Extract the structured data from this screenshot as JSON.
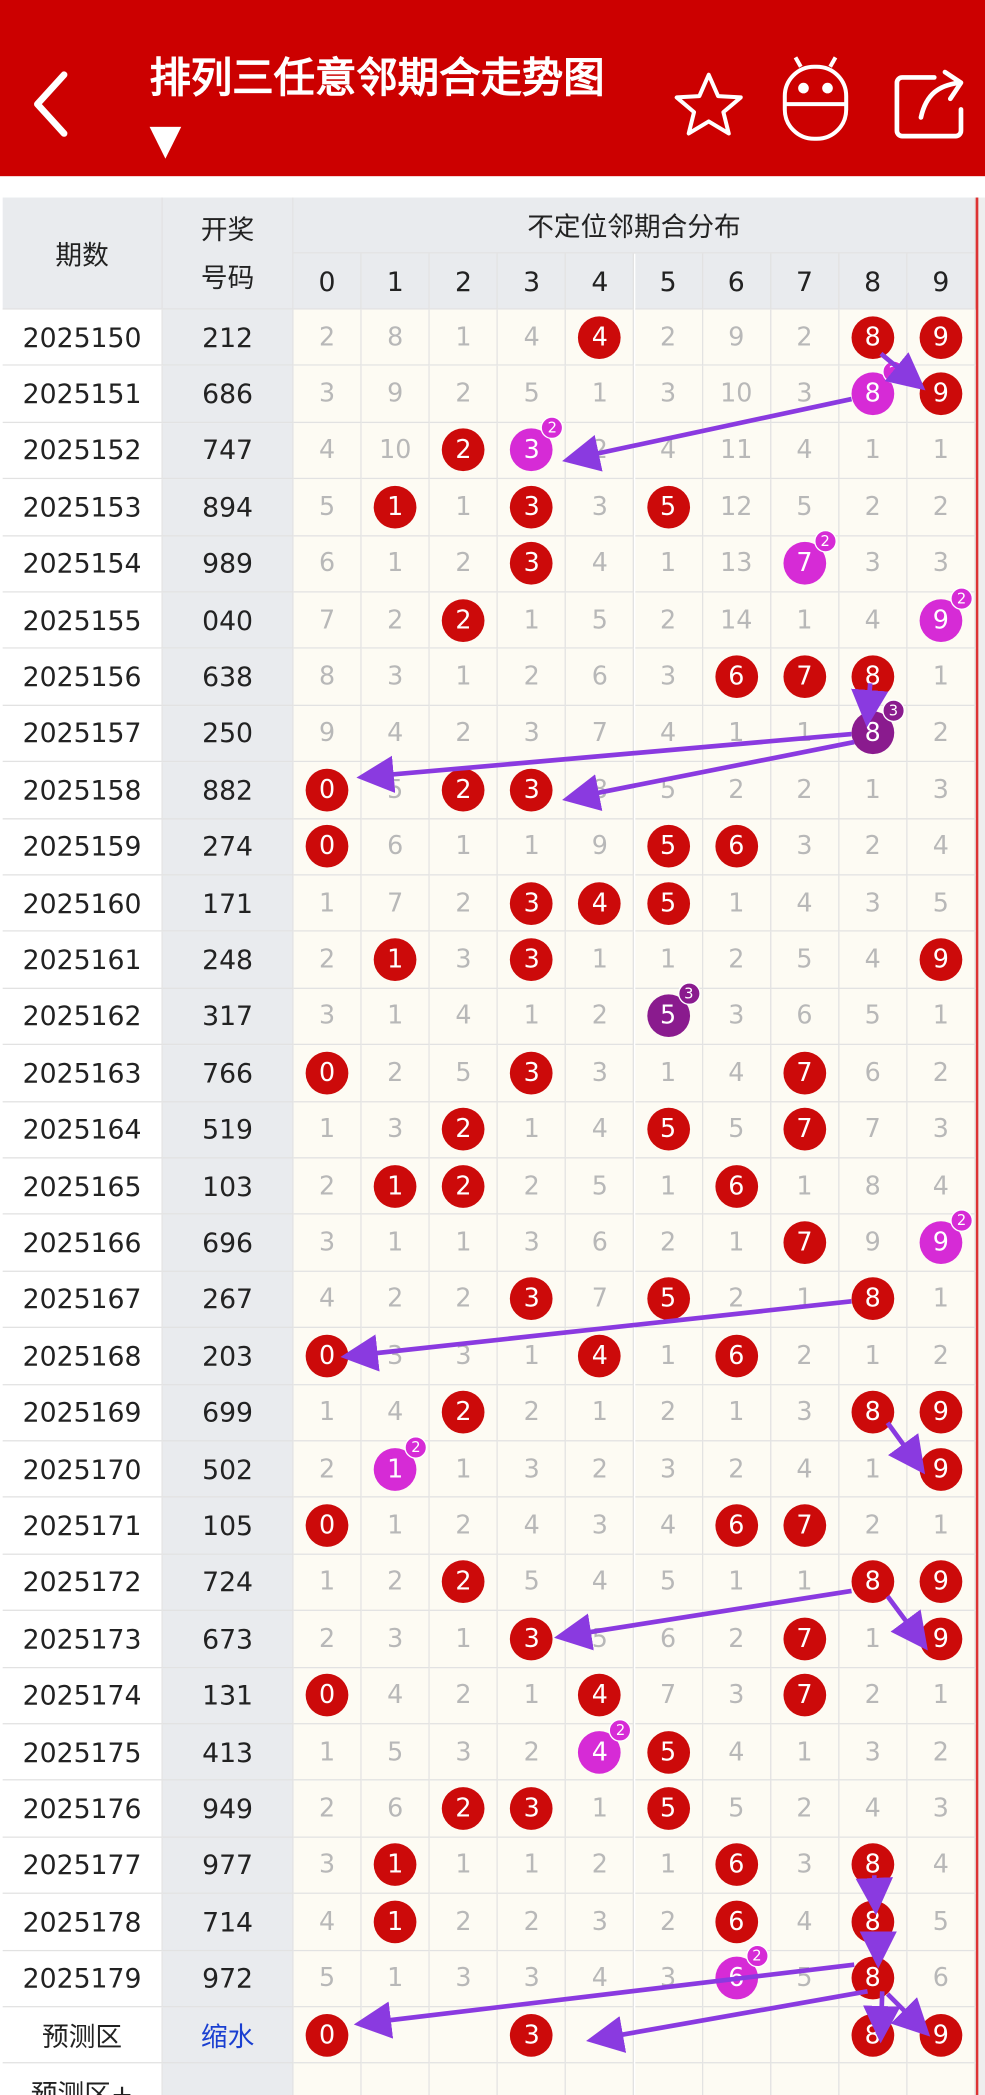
{
  "header": {
    "title": "排列三任意邻期合走势图 ▼"
  },
  "table": {
    "columns": {
      "period": "期数",
      "number": [
        "开奖",
        "号码"
      ],
      "group": "不定位邻期合分布",
      "digits": [
        "0",
        "1",
        "2",
        "3",
        "4",
        "5",
        "6",
        "7",
        "8",
        "9"
      ]
    },
    "rows": [
      {
        "period": "2025150",
        "number": "212",
        "cells": [
          "2",
          "8",
          "1",
          "4",
          {
            "ball": "4",
            "color": "red"
          },
          "2",
          "9",
          "2",
          {
            "ball": "8",
            "color": "red"
          },
          {
            "ball": "9",
            "color": "red"
          }
        ]
      },
      {
        "period": "2025151",
        "number": "686",
        "cells": [
          "3",
          "9",
          "2",
          "5",
          "1",
          "3",
          "10",
          "3",
          {
            "ball": "8",
            "color": "magenta",
            "sup": "2"
          },
          {
            "ball": "9",
            "color": "red"
          }
        ]
      },
      {
        "period": "2025152",
        "number": "747",
        "cells": [
          "4",
          "10",
          {
            "ball": "2",
            "color": "red"
          },
          {
            "ball": "3",
            "color": "magenta",
            "sup": "2"
          },
          "2",
          "4",
          "11",
          "4",
          "1",
          "1"
        ]
      },
      {
        "period": "2025153",
        "number": "894",
        "cells": [
          "5",
          {
            "ball": "1",
            "color": "red"
          },
          "1",
          {
            "ball": "3",
            "color": "red"
          },
          "3",
          {
            "ball": "5",
            "color": "red"
          },
          "12",
          "5",
          "2",
          "2"
        ]
      },
      {
        "period": "2025154",
        "number": "989",
        "cells": [
          "6",
          "1",
          "2",
          {
            "ball": "3",
            "color": "red"
          },
          "4",
          "1",
          "13",
          {
            "ball": "7",
            "color": "magenta",
            "sup": "2"
          },
          "3",
          "3"
        ]
      },
      {
        "period": "2025155",
        "number": "040",
        "cells": [
          "7",
          "2",
          {
            "ball": "2",
            "color": "red"
          },
          "1",
          "5",
          "2",
          "14",
          "1",
          "4",
          {
            "ball": "9",
            "color": "magenta",
            "sup": "2"
          }
        ]
      },
      {
        "period": "2025156",
        "number": "638",
        "cells": [
          "8",
          "3",
          "1",
          "2",
          "6",
          "3",
          {
            "ball": "6",
            "color": "red"
          },
          {
            "ball": "7",
            "color": "red"
          },
          {
            "ball": "8",
            "color": "red"
          },
          "1"
        ]
      },
      {
        "period": "2025157",
        "number": "250",
        "cells": [
          "9",
          "4",
          "2",
          "3",
          "7",
          "4",
          "1",
          "1",
          {
            "ball": "8",
            "color": "purple",
            "sup": "3"
          },
          "2"
        ]
      },
      {
        "period": "2025158",
        "number": "882",
        "cells": [
          {
            "ball": "0",
            "color": "red"
          },
          "5",
          {
            "ball": "2",
            "color": "red"
          },
          {
            "ball": "3",
            "color": "red"
          },
          "8",
          "5",
          "2",
          "2",
          "1",
          "3"
        ]
      },
      {
        "period": "2025159",
        "number": "274",
        "cells": [
          {
            "ball": "0",
            "color": "red"
          },
          "6",
          "1",
          "1",
          "9",
          {
            "ball": "5",
            "color": "red"
          },
          {
            "ball": "6",
            "color": "red"
          },
          "3",
          "2",
          "4"
        ]
      },
      {
        "period": "2025160",
        "number": "171",
        "cells": [
          "1",
          "7",
          "2",
          {
            "ball": "3",
            "color": "red"
          },
          {
            "ball": "4",
            "color": "red"
          },
          {
            "ball": "5",
            "color": "red"
          },
          "1",
          "4",
          "3",
          "5"
        ]
      },
      {
        "period": "2025161",
        "number": "248",
        "cells": [
          "2",
          {
            "ball": "1",
            "color": "red"
          },
          "3",
          {
            "ball": "3",
            "color": "red"
          },
          "1",
          "1",
          "2",
          "5",
          "4",
          {
            "ball": "9",
            "color": "red"
          }
        ]
      },
      {
        "period": "2025162",
        "number": "317",
        "cells": [
          "3",
          "1",
          "4",
          "1",
          "2",
          {
            "ball": "5",
            "color": "purple",
            "sup": "3"
          },
          "3",
          "6",
          "5",
          "1"
        ]
      },
      {
        "period": "2025163",
        "number": "766",
        "cells": [
          {
            "ball": "0",
            "color": "red"
          },
          "2",
          "5",
          {
            "ball": "3",
            "color": "red"
          },
          "3",
          "1",
          "4",
          {
            "ball": "7",
            "color": "red"
          },
          "6",
          "2"
        ]
      },
      {
        "period": "2025164",
        "number": "519",
        "cells": [
          "1",
          "3",
          {
            "ball": "2",
            "color": "red"
          },
          "1",
          "4",
          {
            "ball": "5",
            "color": "red"
          },
          "5",
          {
            "ball": "7",
            "color": "red"
          },
          "7",
          "3"
        ]
      },
      {
        "period": "2025165",
        "number": "103",
        "cells": [
          "2",
          {
            "ball": "1",
            "color": "red"
          },
          {
            "ball": "2",
            "color": "red"
          },
          "2",
          "5",
          "1",
          {
            "ball": "6",
            "color": "red"
          },
          "1",
          "8",
          "4"
        ]
      },
      {
        "period": "2025166",
        "number": "696",
        "cells": [
          "3",
          "1",
          "1",
          "3",
          "6",
          "2",
          "1",
          {
            "ball": "7",
            "color": "red"
          },
          "9",
          {
            "ball": "9",
            "color": "magenta",
            "sup": "2"
          }
        ]
      },
      {
        "period": "2025167",
        "number": "267",
        "cells": [
          "4",
          "2",
          "2",
          {
            "ball": "3",
            "color": "red"
          },
          "7",
          {
            "ball": "5",
            "color": "red"
          },
          "2",
          "1",
          {
            "ball": "8",
            "color": "red"
          },
          "1"
        ]
      },
      {
        "period": "2025168",
        "number": "203",
        "cells": [
          {
            "ball": "0",
            "color": "red"
          },
          "3",
          "3",
          "1",
          {
            "ball": "4",
            "color": "red"
          },
          "1",
          {
            "ball": "6",
            "color": "red"
          },
          "2",
          "1",
          "2"
        ]
      },
      {
        "period": "2025169",
        "number": "699",
        "cells": [
          "1",
          "4",
          {
            "ball": "2",
            "color": "red"
          },
          "2",
          "1",
          "2",
          "1",
          "3",
          {
            "ball": "8",
            "color": "red"
          },
          {
            "ball": "9",
            "color": "red"
          }
        ]
      },
      {
        "period": "2025170",
        "number": "502",
        "cells": [
          "2",
          {
            "ball": "1",
            "color": "magenta",
            "sup": "2"
          },
          "1",
          "3",
          "2",
          "3",
          "2",
          "4",
          "1",
          {
            "ball": "9",
            "color": "red"
          }
        ]
      },
      {
        "period": "2025171",
        "number": "105",
        "cells": [
          {
            "ball": "0",
            "color": "red"
          },
          "1",
          "2",
          "4",
          "3",
          "4",
          {
            "ball": "6",
            "color": "red"
          },
          {
            "ball": "7",
            "color": "red"
          },
          "2",
          "1"
        ]
      },
      {
        "period": "2025172",
        "number": "724",
        "cells": [
          "1",
          "2",
          {
            "ball": "2",
            "color": "red"
          },
          "5",
          "4",
          "5",
          "1",
          "1",
          {
            "ball": "8",
            "color": "red"
          },
          {
            "ball": "9",
            "color": "red"
          }
        ]
      },
      {
        "period": "2025173",
        "number": "673",
        "cells": [
          "2",
          "3",
          "1",
          {
            "ball": "3",
            "color": "red"
          },
          "5",
          "6",
          "2",
          {
            "ball": "7",
            "color": "red"
          },
          "1",
          {
            "ball": "9",
            "color": "red"
          }
        ]
      },
      {
        "period": "2025174",
        "number": "131",
        "cells": [
          {
            "ball": "0",
            "color": "red"
          },
          "4",
          "2",
          "1",
          {
            "ball": "4",
            "color": "red"
          },
          "7",
          "3",
          {
            "ball": "7",
            "color": "red"
          },
          "2",
          "1"
        ]
      },
      {
        "period": "2025175",
        "number": "413",
        "cells": [
          "1",
          "5",
          "3",
          "2",
          {
            "ball": "4",
            "color": "magenta",
            "sup": "2"
          },
          {
            "ball": "5",
            "color": "red"
          },
          "4",
          "1",
          "3",
          "2"
        ]
      },
      {
        "period": "2025176",
        "number": "949",
        "cells": [
          "2",
          "6",
          {
            "ball": "2",
            "color": "red"
          },
          {
            "ball": "3",
            "color": "red"
          },
          "1",
          {
            "ball": "5",
            "color": "red"
          },
          "5",
          "2",
          "4",
          "3"
        ]
      },
      {
        "period": "2025177",
        "number": "977",
        "cells": [
          "3",
          {
            "ball": "1",
            "color": "red"
          },
          "1",
          "1",
          "2",
          "1",
          {
            "ball": "6",
            "color": "red"
          },
          "3",
          {
            "ball": "8",
            "color": "red"
          },
          "4"
        ]
      },
      {
        "period": "2025178",
        "number": "714",
        "cells": [
          "4",
          {
            "ball": "1",
            "color": "red"
          },
          "2",
          "2",
          "3",
          "2",
          {
            "ball": "6",
            "color": "red"
          },
          "4",
          {
            "ball": "8",
            "color": "red"
          },
          "5"
        ]
      },
      {
        "period": "2025179",
        "number": "972",
        "cells": [
          "5",
          "1",
          "3",
          "3",
          "4",
          "3",
          {
            "ball": "6",
            "color": "magenta",
            "sup": "2"
          },
          "5",
          {
            "ball": "8",
            "color": "red"
          },
          "6"
        ]
      },
      {
        "period": "预测区",
        "number": "缩水",
        "cells": [
          {
            "ball": "0",
            "color": "red"
          },
          null,
          null,
          {
            "ball": "3",
            "color": "red"
          },
          null,
          null,
          null,
          null,
          {
            "ball": "8",
            "color": "red"
          },
          {
            "ball": "9",
            "color": "red"
          }
        ]
      },
      {
        "period": "预测区+",
        "number": null,
        "cells": [
          null,
          null,
          null,
          null,
          null,
          null,
          null,
          null,
          null,
          null
        ]
      }
    ]
  }
}
